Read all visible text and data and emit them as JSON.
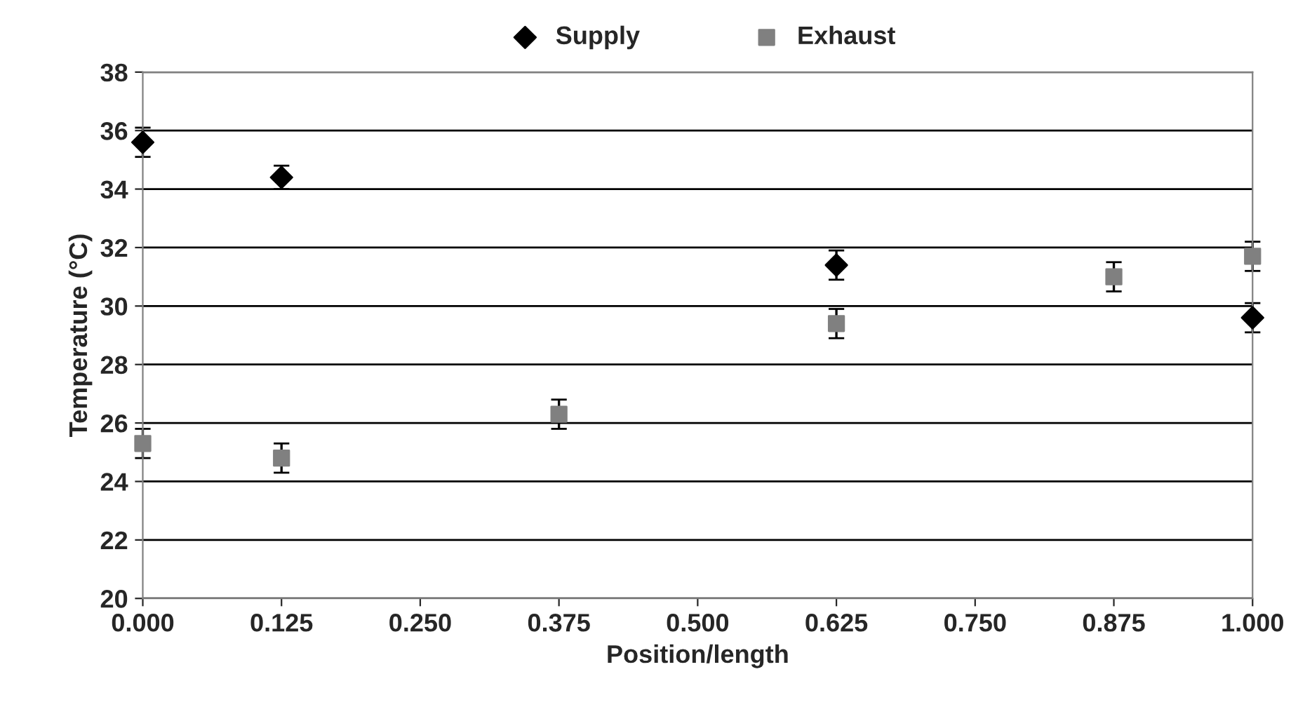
{
  "chart_data": {
    "type": "scatter",
    "xlabel": "Position/length",
    "ylabel": "Temperature (°C)",
    "xlim": [
      0,
      1
    ],
    "xticks": [
      {
        "value": 0,
        "label": "0.000"
      },
      {
        "value": 0.125,
        "label": "0.125"
      },
      {
        "value": 0.25,
        "label": "0.250"
      },
      {
        "value": 0.375,
        "label": "0.375"
      },
      {
        "value": 0.5,
        "label": "0.500"
      },
      {
        "value": 0.625,
        "label": "0.625"
      },
      {
        "value": 0.75,
        "label": "0.750"
      },
      {
        "value": 0.875,
        "label": "0.875"
      },
      {
        "value": 1,
        "label": "1.000"
      }
    ],
    "ylim": [
      20,
      38
    ],
    "yticks": [
      20,
      22,
      24,
      26,
      28,
      30,
      32,
      34,
      36,
      38
    ],
    "grid": "y",
    "legend": "top",
    "series": [
      {
        "name": "Supply",
        "color": "#000000",
        "marker": "diamond",
        "x": [
          0,
          0.125,
          0.625,
          1
        ],
        "values": [
          35.6,
          34.4,
          31.4,
          29.6
        ],
        "errors": [
          0.5,
          0.4,
          0.5,
          0.5
        ]
      },
      {
        "name": "Exhaust",
        "color": "#808080",
        "marker": "square",
        "x": [
          0,
          0.125,
          0.375,
          0.625,
          0.875,
          1
        ],
        "values": [
          25.3,
          24.8,
          26.3,
          29.4,
          31.0,
          31.7
        ],
        "errors": [
          0.5,
          0.5,
          0.5,
          0.5,
          0.5,
          0.5
        ]
      }
    ]
  }
}
